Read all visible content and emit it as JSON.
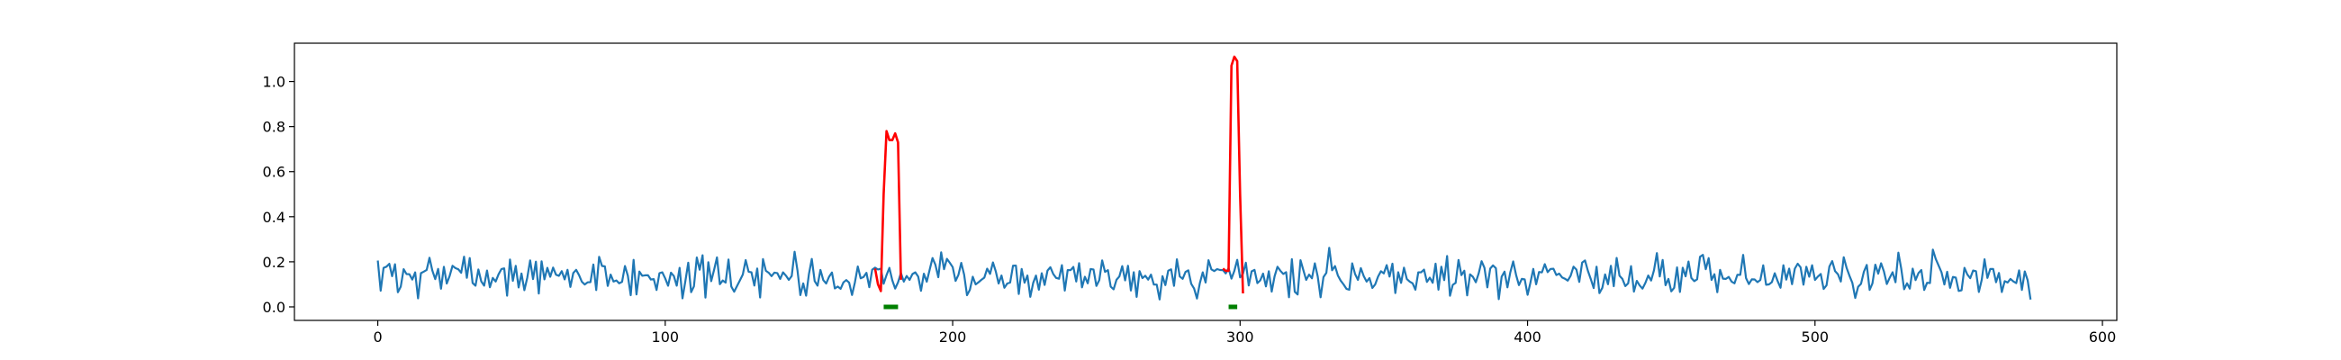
{
  "chart_data": {
    "type": "line",
    "xlim": [
      -29,
      605
    ],
    "ylim": [
      -0.06,
      1.17
    ],
    "x_ticks": [
      0,
      100,
      200,
      300,
      400,
      500,
      600
    ],
    "y_ticks": [
      0.0,
      0.2,
      0.4,
      0.6,
      0.8,
      1.0
    ],
    "x_tick_labels": [
      "0",
      "100",
      "200",
      "300",
      "400",
      "500",
      "600"
    ],
    "y_tick_labels": [
      "0.0",
      "0.2",
      "0.4",
      "0.6",
      "0.8",
      "1.0"
    ],
    "grid": false,
    "legend": "none",
    "colors": {
      "signal": "#1f77b4",
      "anomaly": "#ff0000",
      "marker": "#008000"
    },
    "series": [
      {
        "role": "signal",
        "x_start": 0,
        "x_end": 575,
        "y_mean": 0.13,
        "y_range": [
          0.0,
          0.29
        ],
        "samples_every": 1,
        "noise_seed": 7
      },
      {
        "role": "anomaly",
        "points": [
          [
            173,
            0.17
          ],
          [
            174,
            0.1
          ],
          [
            175,
            0.07
          ],
          [
            176,
            0.5
          ],
          [
            177,
            0.78
          ],
          [
            178,
            0.74
          ],
          [
            179,
            0.74
          ],
          [
            180,
            0.77
          ],
          [
            181,
            0.73
          ],
          [
            182,
            0.12
          ]
        ]
      },
      {
        "role": "anomaly",
        "points": [
          [
            294,
            0.17
          ],
          [
            295,
            0.16
          ],
          [
            296,
            0.16
          ],
          [
            297,
            1.07
          ],
          [
            298,
            1.11
          ],
          [
            299,
            1.09
          ],
          [
            300,
            0.5
          ],
          [
            301,
            0.06
          ]
        ]
      }
    ],
    "markers": [
      {
        "x_start": 176,
        "x_end": 181,
        "y": 0.0
      },
      {
        "x_start": 296,
        "x_end": 299,
        "y": 0.0
      }
    ]
  }
}
